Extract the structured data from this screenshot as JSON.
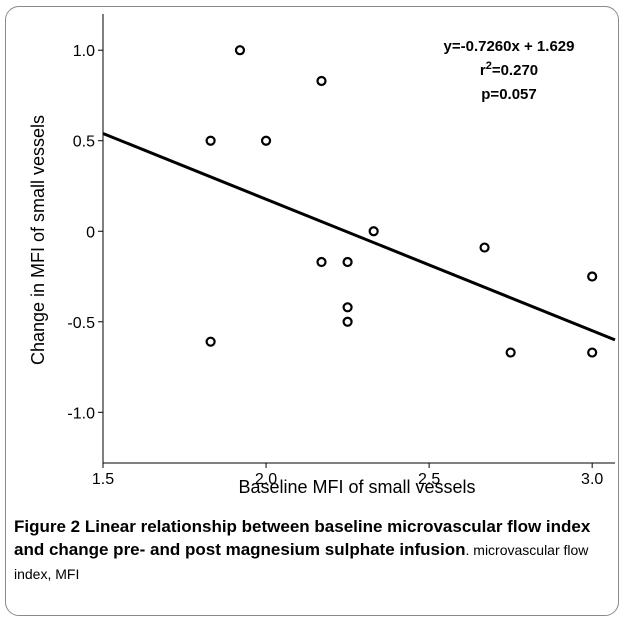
{
  "chart_data": {
    "type": "scatter",
    "xlabel": "Baseline MFI of small vessels",
    "ylabel": "Change in MFI of small vessels",
    "xlim": [
      1.5,
      3.07
    ],
    "ylim": [
      -1.28,
      1.2
    ],
    "x_ticks": [
      {
        "value": 1.5,
        "label": "1.5"
      },
      {
        "value": 2.0,
        "label": "2.0"
      },
      {
        "value": 2.5,
        "label": "2.5"
      },
      {
        "value": 3.0,
        "label": "3.0"
      }
    ],
    "y_ticks": [
      {
        "value": 1.0,
        "label": "1.0"
      },
      {
        "value": 0.5,
        "label": "0.5"
      },
      {
        "value": 0.0,
        "label": "0"
      },
      {
        "value": -0.5,
        "label": "-0.5"
      },
      {
        "value": -1.0,
        "label": "-1.0"
      }
    ],
    "points": [
      {
        "x": 1.83,
        "y": 0.5
      },
      {
        "x": 1.83,
        "y": -0.61
      },
      {
        "x": 1.92,
        "y": 1.0
      },
      {
        "x": 2.0,
        "y": 0.5
      },
      {
        "x": 2.17,
        "y": 0.83
      },
      {
        "x": 2.17,
        "y": -0.17
      },
      {
        "x": 2.25,
        "y": -0.17
      },
      {
        "x": 2.25,
        "y": -0.42
      },
      {
        "x": 2.25,
        "y": -0.5
      },
      {
        "x": 2.33,
        "y": 0.0
      },
      {
        "x": 2.67,
        "y": -0.09
      },
      {
        "x": 2.75,
        "y": -0.67
      },
      {
        "x": 3.0,
        "y": -0.25
      },
      {
        "x": 3.0,
        "y": -0.67
      }
    ],
    "fit_line": {
      "slope": -0.726,
      "intercept": 1.629
    },
    "annotations": {
      "equation": "y=-0.7260x + 1.629",
      "r2_prefix": "r",
      "r2_sup": "2",
      "r2_value": "=0.270",
      "p_value": "p=0.057"
    },
    "grid": false
  },
  "caption": {
    "label": "Figure 2",
    "title": "Linear relationship between baseline microvascular flow index and change pre- and post magnesium sulphate infusion",
    "text": ". microvascular flow index, MFI"
  }
}
